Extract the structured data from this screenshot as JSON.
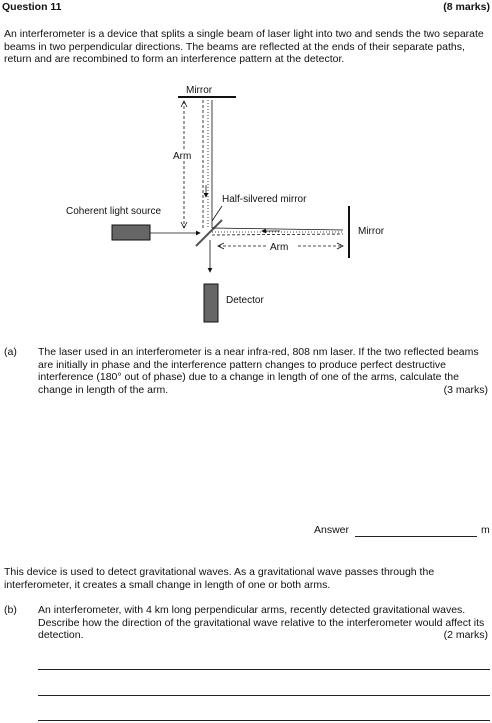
{
  "header": {
    "title": "Question 11",
    "marks": "(8 marks)"
  },
  "intro": "An interferometer is a device that splits a single beam of laser light into two and sends the two separate beams in two perpendicular directions. The beams are reflected at the ends of their separate paths, return and are recombined to form an interference pattern at the detector.",
  "diagram": {
    "top_mirror": "Mirror",
    "arm_vertical": "Arm",
    "half_silvered_mirror": "Half-silvered mirror",
    "source": "Coherent light source",
    "right_mirror": "Mirror",
    "arm_horizontal": "Arm",
    "detector": "Detector"
  },
  "part_a": {
    "label": "(a)",
    "text": "The laser used in an interferometer is a near infra-red, 808 nm laser. If the two reflected beams are initially in phase and the interference pattern changes to produce perfect destructive interference (180° out of phase) due to a change in length of one of the arms, calculate the change in length of the arm.",
    "marks": "(3 marks)",
    "answer_label": "Answer",
    "answer_unit": "m"
  },
  "gw_intro": "This device is used to detect gravitational waves. As a gravitational wave passes through the interferometer, it creates a small change in length of one or both arms.",
  "part_b": {
    "label": "(b)",
    "text": "An interferometer, with 4 km long perpendicular arms, recently detected gravitational waves. Describe how the direction of the gravitational wave relative to the interferometer would affect its detection.",
    "marks": "(2 marks)"
  }
}
